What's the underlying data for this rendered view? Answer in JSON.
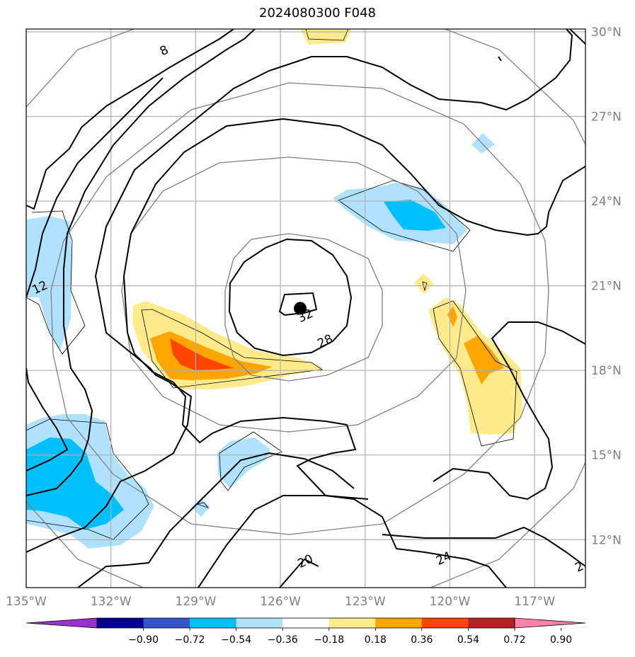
{
  "title": "2024080300 F048",
  "map": {
    "extent": {
      "lon_min": -135,
      "lon_max": -115.2,
      "lat_min": 10.3,
      "lat_max": 30.1
    },
    "lon_ticks": [
      {
        "value": -135,
        "label": "135°W"
      },
      {
        "value": -132,
        "label": "132°W"
      },
      {
        "value": -129,
        "label": "129°W"
      },
      {
        "value": -126,
        "label": "126°W"
      },
      {
        "value": -123,
        "label": "123°W"
      },
      {
        "value": -120,
        "label": "120°W"
      },
      {
        "value": -117,
        "label": "117°W"
      }
    ],
    "lat_ticks": [
      {
        "value": 30,
        "label": "30°N"
      },
      {
        "value": 27,
        "label": "27°N"
      },
      {
        "value": 24,
        "label": "24°N"
      },
      {
        "value": 21,
        "label": "21°N"
      },
      {
        "value": 18,
        "label": "18°N"
      },
      {
        "value": 15,
        "label": "15°N"
      },
      {
        "value": 12,
        "label": "12°N"
      }
    ],
    "storm_center": {
      "lon": -125.3,
      "lat": 20.2
    },
    "contour_labels": [
      {
        "text": "8",
        "lon": -130.1,
        "lat": 29.3
      },
      {
        "text": "12",
        "lon": -134.5,
        "lat": 20.9
      },
      {
        "text": "32",
        "lon": -125.1,
        "lat": 19.9
      },
      {
        "text": "28",
        "lon": -124.4,
        "lat": 19.0
      },
      {
        "text": "20",
        "lon": -125.1,
        "lat": 11.2
      },
      {
        "text": "24",
        "lon": -120.2,
        "lat": 11.3
      },
      {
        "text": "2",
        "lon": -115.4,
        "lat": 11.0
      }
    ],
    "colors": {
      "grid": "#b0b0b0",
      "range_rings": "#808080",
      "contours": "#000000",
      "shading": [
        "#9932CC",
        "#00008B",
        "#3355CC",
        "#00BFFF",
        "#B0E2FF",
        "#FFFFFF",
        "#FFEB8C",
        "#FFA500",
        "#FF4500",
        "#B22222",
        "#FF82AB"
      ]
    }
  },
  "colorbar": {
    "labels": [
      "−0.90",
      "−0.72",
      "−0.54",
      "−0.36",
      "−0.18",
      "0.18",
      "0.36",
      "0.54",
      "0.72",
      "0.90"
    ],
    "colors": [
      "#9932CC",
      "#00008B",
      "#3355CC",
      "#00BFFF",
      "#B0E2FF",
      "#FFFFFF",
      "#FFEB8C",
      "#FFA500",
      "#FF4500",
      "#B22222",
      "#FF82AB"
    ]
  }
}
